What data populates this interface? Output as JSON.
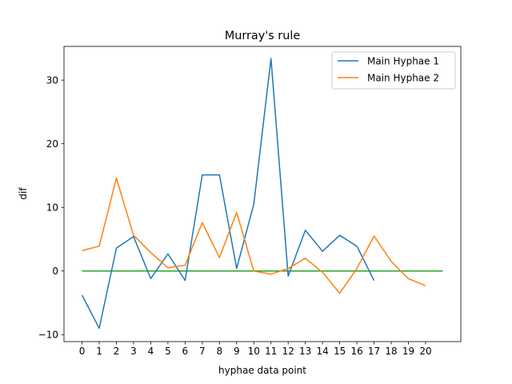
{
  "chart_data": {
    "type": "line",
    "title": "Murray's rule",
    "xlabel": "hyphae data point",
    "ylabel": "dif",
    "xlim": [
      -1.05,
      22.05
    ],
    "ylim": [
      -11.1,
      35.3
    ],
    "xticks": [
      0,
      1,
      2,
      3,
      4,
      5,
      6,
      7,
      8,
      9,
      10,
      11,
      12,
      13,
      14,
      15,
      16,
      17,
      18,
      19,
      20
    ],
    "yticks": [
      -10,
      0,
      10,
      20,
      30
    ],
    "grid": false,
    "legend_position": "top-right",
    "series": [
      {
        "name": "Main Hyphae 1",
        "color": "#1f77b4",
        "x": [
          0,
          1,
          2,
          3,
          4,
          5,
          6,
          7,
          8,
          9,
          10,
          11,
          12,
          13,
          14,
          15,
          16,
          17
        ],
        "values": [
          -3.8,
          -9.0,
          3.6,
          5.4,
          -1.2,
          2.7,
          -1.5,
          15.1,
          15.1,
          0.4,
          10.5,
          33.4,
          -0.8,
          6.4,
          3.1,
          5.6,
          3.9,
          -1.5
        ]
      },
      {
        "name": "Main Hyphae 2",
        "color": "#ff7f0e",
        "x": [
          0,
          1,
          2,
          3,
          4,
          5,
          6,
          7,
          8,
          9,
          10,
          11,
          12,
          13,
          14,
          15,
          16,
          17,
          18,
          19,
          20
        ],
        "values": [
          3.2,
          3.9,
          14.6,
          5.6,
          2.9,
          0.5,
          0.9,
          7.6,
          2.1,
          9.2,
          0.0,
          -0.5,
          0.4,
          2.0,
          -0.2,
          -3.5,
          0.4,
          5.5,
          1.5,
          -1.2,
          -2.3
        ]
      }
    ],
    "reference_line": {
      "color": "#2ca02c",
      "x": [
        0,
        21
      ],
      "values": [
        0,
        0
      ]
    }
  }
}
